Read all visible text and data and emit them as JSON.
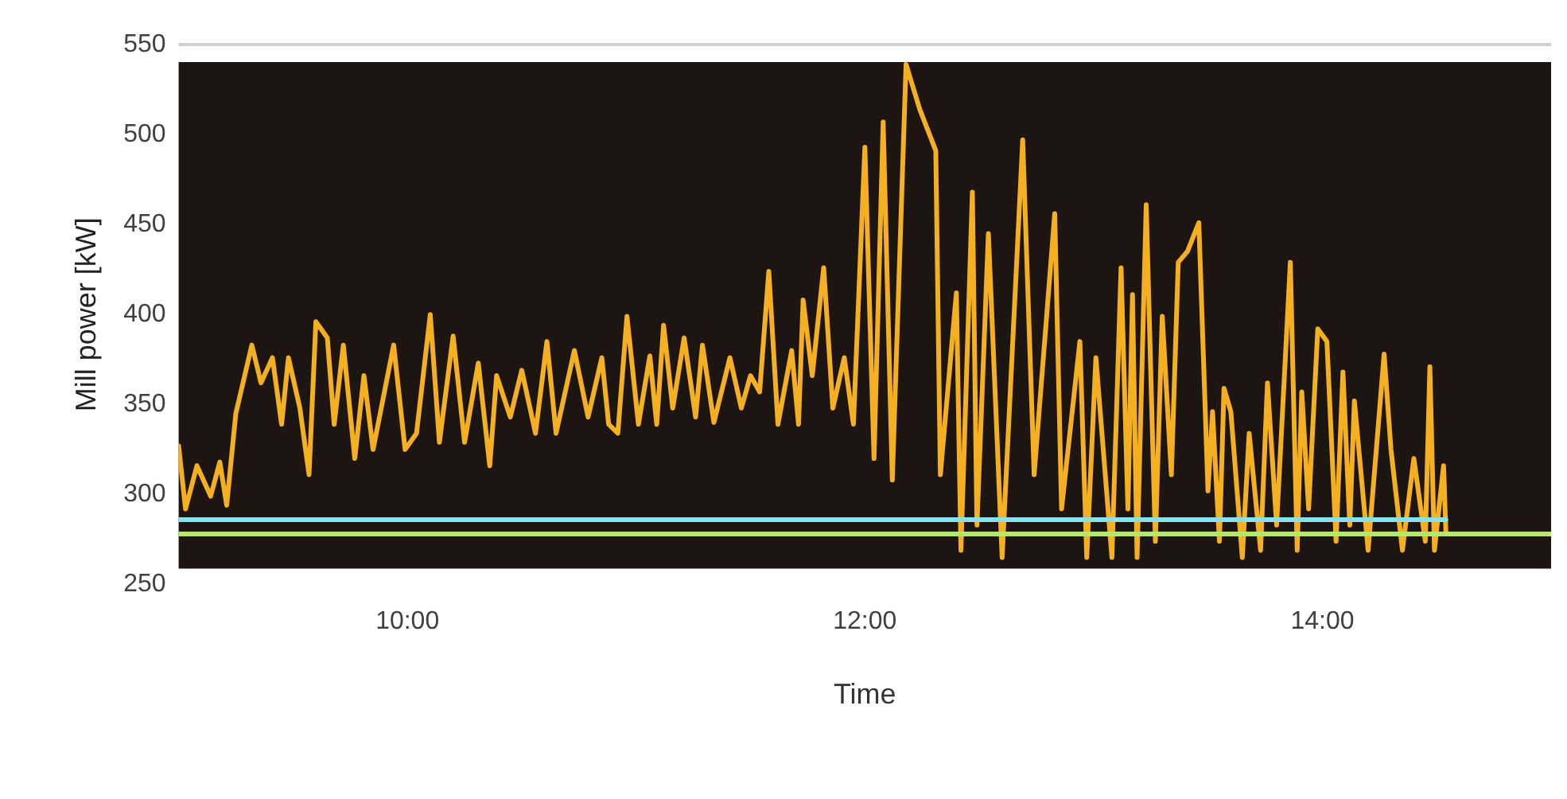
{
  "chart_data": {
    "type": "line",
    "xlabel": "Time",
    "ylabel": "Mill power [kW]",
    "xlim": [
      9,
      15
    ],
    "xticks": [
      {
        "value": 10,
        "label": "10:00"
      },
      {
        "value": 12,
        "label": "12:00"
      },
      {
        "value": 14,
        "label": "14:00"
      }
    ],
    "ylim": [
      250,
      550
    ],
    "yticks": [
      250,
      300,
      350,
      400,
      450,
      500,
      550
    ],
    "legend": false,
    "marker": "none",
    "line_style": "solid",
    "series": [
      {
        "color": "#f5b022",
        "x": [
          9.0,
          9.03,
          9.08,
          9.14,
          9.18,
          9.21,
          9.25,
          9.32,
          9.36,
          9.41,
          9.45,
          9.48,
          9.53,
          9.57,
          9.6,
          9.65,
          9.68,
          9.72,
          9.77,
          9.81,
          9.85,
          9.94,
          9.99,
          10.04,
          10.1,
          10.14,
          10.2,
          10.25,
          10.31,
          10.36,
          10.39,
          10.45,
          10.5,
          10.56,
          10.61,
          10.65,
          10.73,
          10.79,
          10.85,
          10.88,
          10.92,
          10.96,
          11.01,
          11.06,
          11.09,
          11.12,
          11.16,
          11.21,
          11.26,
          11.29,
          11.34,
          11.41,
          11.46,
          11.5,
          11.54,
          11.58,
          11.62,
          11.68,
          11.71,
          11.73,
          11.77,
          11.82,
          11.86,
          11.91,
          11.95,
          12.0,
          12.04,
          12.08,
          12.12,
          12.18,
          12.24,
          12.31,
          12.33,
          12.4,
          12.42,
          12.47,
          12.49,
          12.54,
          12.6,
          12.69,
          12.74,
          12.83,
          12.86,
          12.94,
          12.97,
          13.01,
          13.08,
          13.12,
          13.15,
          13.17,
          13.19,
          13.23,
          13.27,
          13.3,
          13.34,
          13.37,
          13.41,
          13.46,
          13.5,
          13.52,
          13.55,
          13.57,
          13.6,
          13.65,
          13.68,
          13.73,
          13.76,
          13.8,
          13.86,
          13.89,
          13.91,
          13.94,
          13.98,
          14.02,
          14.06,
          14.09,
          14.12,
          14.14,
          14.2,
          14.27,
          14.3,
          14.35,
          14.4,
          14.45,
          14.47,
          14.49,
          14.53,
          14.54
        ],
        "values": [
          327,
          292,
          316,
          299,
          318,
          294,
          345,
          383,
          362,
          376,
          339,
          376,
          348,
          311,
          396,
          387,
          339,
          383,
          320,
          366,
          325,
          383,
          325,
          334,
          400,
          329,
          388,
          329,
          373,
          316,
          366,
          343,
          369,
          334,
          385,
          334,
          380,
          343,
          376,
          339,
          334,
          399,
          339,
          377,
          339,
          394,
          348,
          387,
          343,
          383,
          340,
          376,
          348,
          366,
          357,
          424,
          339,
          380,
          339,
          408,
          366,
          426,
          348,
          376,
          339,
          493,
          320,
          507,
          308,
          539,
          514,
          491,
          311,
          412,
          269,
          468,
          283,
          445,
          265,
          497,
          311,
          456,
          292,
          385,
          265,
          376,
          265,
          426,
          292,
          411,
          265,
          461,
          274,
          399,
          311,
          429,
          435,
          451,
          302,
          346,
          274,
          359,
          346,
          265,
          334,
          269,
          362,
          283,
          429,
          269,
          357,
          292,
          392,
          385,
          274,
          368,
          283,
          352,
          269,
          378,
          325,
          269,
          320,
          274,
          371,
          269,
          316,
          279
        ]
      },
      {
        "color": "#7fe3f0",
        "x": [
          9,
          14.54
        ],
        "values": [
          286,
          286
        ]
      },
      {
        "color": "#b5e86a",
        "x": [
          9,
          15
        ],
        "values": [
          278,
          278
        ]
      }
    ]
  }
}
